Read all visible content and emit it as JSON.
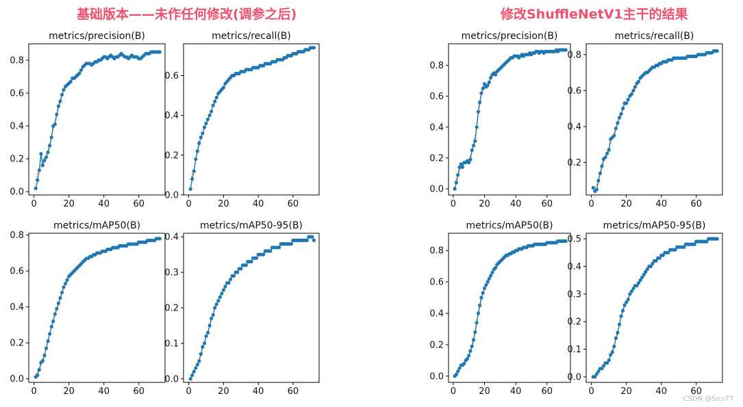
{
  "headings": {
    "left": "基础版本——未作任何修改(调参之后)",
    "right": "修改ShuffleNetV1主干的结果"
  },
  "watermark": "CSDN @Snu77",
  "colors": {
    "heading": "#f0506e",
    "points": "#1f77b4",
    "smooth": "#ff7f0e"
  },
  "chart_data": [
    {
      "type": "line",
      "group": "left",
      "title": "metrics/precision(B)",
      "xlabel": "",
      "ylabel": "",
      "xlim": [
        -3,
        75
      ],
      "ylim": [
        -0.02,
        0.9
      ],
      "xticks": [
        0,
        20,
        40,
        60
      ],
      "yticks": [
        0.0,
        0.2,
        0.4,
        0.6,
        0.8
      ],
      "series": [
        {
          "type": "scatter+line",
          "x_start": 1,
          "values": [
            0.02,
            0.07,
            0.13,
            0.23,
            0.16,
            0.19,
            0.21,
            0.24,
            0.28,
            0.33,
            0.4,
            0.41,
            0.47,
            0.52,
            0.55,
            0.59,
            0.62,
            0.64,
            0.65,
            0.66,
            0.67,
            0.69,
            0.69,
            0.7,
            0.71,
            0.72,
            0.74,
            0.76,
            0.77,
            0.78,
            0.78,
            0.78,
            0.77,
            0.78,
            0.79,
            0.79,
            0.8,
            0.8,
            0.81,
            0.82,
            0.82,
            0.81,
            0.82,
            0.83,
            0.82,
            0.81,
            0.82,
            0.82,
            0.83,
            0.84,
            0.83,
            0.82,
            0.82,
            0.81,
            0.82,
            0.83,
            0.82,
            0.82,
            0.82,
            0.81,
            0.81,
            0.82,
            0.83,
            0.84,
            0.84,
            0.84,
            0.85,
            0.85,
            0.85,
            0.85,
            0.85,
            0.85
          ]
        }
      ]
    },
    {
      "type": "line",
      "group": "left",
      "title": "metrics/recall(B)",
      "xlabel": "",
      "ylabel": "",
      "xlim": [
        -3,
        75
      ],
      "ylim": [
        0.0,
        0.76
      ],
      "xticks": [
        0,
        20,
        40,
        60
      ],
      "yticks": [
        0.0,
        0.2,
        0.4,
        0.6
      ],
      "series": [
        {
          "type": "scatter+line",
          "x_start": 1,
          "values": [
            0.03,
            0.08,
            0.12,
            0.18,
            0.22,
            0.26,
            0.29,
            0.31,
            0.34,
            0.36,
            0.38,
            0.4,
            0.42,
            0.45,
            0.47,
            0.49,
            0.51,
            0.52,
            0.53,
            0.54,
            0.56,
            0.57,
            0.58,
            0.59,
            0.6,
            0.6,
            0.61,
            0.61,
            0.61,
            0.62,
            0.62,
            0.62,
            0.63,
            0.63,
            0.63,
            0.63,
            0.64,
            0.64,
            0.64,
            0.64,
            0.65,
            0.65,
            0.65,
            0.66,
            0.66,
            0.66,
            0.66,
            0.67,
            0.67,
            0.67,
            0.68,
            0.68,
            0.68,
            0.68,
            0.69,
            0.69,
            0.7,
            0.7,
            0.7,
            0.71,
            0.71,
            0.71,
            0.72,
            0.72,
            0.72,
            0.72,
            0.73,
            0.73,
            0.73,
            0.74,
            0.74,
            0.74
          ]
        }
      ]
    },
    {
      "type": "line",
      "group": "left",
      "title": "metrics/mAP50(B)",
      "xlabel": "",
      "ylabel": "",
      "xlim": [
        -3,
        75
      ],
      "ylim": [
        -0.02,
        0.81
      ],
      "xticks": [
        0,
        20,
        40,
        60
      ],
      "yticks": [
        0.0,
        0.2,
        0.4,
        0.6,
        0.8
      ],
      "series": [
        {
          "type": "scatter+line",
          "x_start": 1,
          "values": [
            0.01,
            0.02,
            0.05,
            0.09,
            0.1,
            0.13,
            0.17,
            0.21,
            0.25,
            0.29,
            0.32,
            0.36,
            0.39,
            0.42,
            0.45,
            0.48,
            0.51,
            0.53,
            0.55,
            0.57,
            0.58,
            0.59,
            0.6,
            0.61,
            0.62,
            0.63,
            0.64,
            0.65,
            0.66,
            0.67,
            0.67,
            0.68,
            0.68,
            0.69,
            0.69,
            0.7,
            0.7,
            0.7,
            0.71,
            0.71,
            0.71,
            0.72,
            0.72,
            0.72,
            0.73,
            0.73,
            0.73,
            0.73,
            0.74,
            0.74,
            0.74,
            0.74,
            0.74,
            0.75,
            0.75,
            0.75,
            0.75,
            0.75,
            0.75,
            0.76,
            0.76,
            0.76,
            0.76,
            0.76,
            0.77,
            0.77,
            0.77,
            0.77,
            0.77,
            0.78,
            0.78,
            0.78
          ]
        }
      ]
    },
    {
      "type": "line",
      "group": "left",
      "title": "metrics/mAP50-95(B)",
      "xlabel": "",
      "ylabel": "",
      "xlim": [
        -3,
        75
      ],
      "ylim": [
        -0.01,
        0.41
      ],
      "xticks": [
        0,
        20,
        40,
        60
      ],
      "yticks": [
        0.0,
        0.1,
        0.2,
        0.3,
        0.4
      ],
      "series": [
        {
          "type": "scatter+line",
          "x_start": 1,
          "values": [
            0.0,
            0.01,
            0.02,
            0.03,
            0.04,
            0.05,
            0.07,
            0.09,
            0.1,
            0.12,
            0.13,
            0.15,
            0.17,
            0.18,
            0.2,
            0.21,
            0.22,
            0.23,
            0.24,
            0.25,
            0.26,
            0.27,
            0.27,
            0.28,
            0.29,
            0.29,
            0.3,
            0.3,
            0.31,
            0.31,
            0.32,
            0.32,
            0.32,
            0.33,
            0.33,
            0.33,
            0.34,
            0.34,
            0.34,
            0.35,
            0.35,
            0.35,
            0.35,
            0.36,
            0.36,
            0.36,
            0.36,
            0.37,
            0.37,
            0.37,
            0.37,
            0.37,
            0.38,
            0.38,
            0.38,
            0.38,
            0.38,
            0.38,
            0.38,
            0.39,
            0.39,
            0.39,
            0.39,
            0.39,
            0.39,
            0.39,
            0.39,
            0.39,
            0.4,
            0.4,
            0.4,
            0.39
          ]
        }
      ]
    },
    {
      "type": "line",
      "group": "right",
      "title": "metrics/precision(B)",
      "xlabel": "",
      "ylabel": "",
      "xlim": [
        -3,
        75
      ],
      "ylim": [
        -0.04,
        0.94
      ],
      "xticks": [
        0,
        20,
        40,
        60
      ],
      "yticks": [
        0.0,
        0.2,
        0.4,
        0.6,
        0.8
      ],
      "series": [
        {
          "type": "scatter+line",
          "x_start": 1,
          "values": [
            0.0,
            0.04,
            0.09,
            0.14,
            0.16,
            0.14,
            0.17,
            0.17,
            0.18,
            0.17,
            0.19,
            0.25,
            0.28,
            0.31,
            0.4,
            0.5,
            0.56,
            0.62,
            0.65,
            0.68,
            0.66,
            0.67,
            0.69,
            0.72,
            0.74,
            0.75,
            0.74,
            0.76,
            0.77,
            0.78,
            0.79,
            0.8,
            0.81,
            0.82,
            0.83,
            0.84,
            0.85,
            0.85,
            0.86,
            0.86,
            0.86,
            0.85,
            0.86,
            0.87,
            0.86,
            0.87,
            0.87,
            0.87,
            0.88,
            0.87,
            0.88,
            0.88,
            0.89,
            0.89,
            0.88,
            0.89,
            0.89,
            0.88,
            0.89,
            0.89,
            0.89,
            0.89,
            0.89,
            0.89,
            0.89,
            0.9,
            0.89,
            0.9,
            0.9,
            0.9,
            0.9,
            0.9
          ]
        }
      ]
    },
    {
      "type": "line",
      "group": "right",
      "title": "metrics/recall(B)",
      "xlabel": "",
      "ylabel": "",
      "xlim": [
        -3,
        75
      ],
      "ylim": [
        0.02,
        0.86
      ],
      "xticks": [
        0,
        20,
        40,
        60
      ],
      "yticks": [
        0.2,
        0.4,
        0.6,
        0.8
      ],
      "series": [
        {
          "type": "scatter+line",
          "x_start": 1,
          "values": [
            0.06,
            0.04,
            0.05,
            0.1,
            0.14,
            0.18,
            0.22,
            0.23,
            0.25,
            0.27,
            0.33,
            0.34,
            0.35,
            0.39,
            0.42,
            0.45,
            0.47,
            0.5,
            0.53,
            0.53,
            0.55,
            0.57,
            0.58,
            0.6,
            0.62,
            0.64,
            0.65,
            0.67,
            0.68,
            0.69,
            0.7,
            0.7,
            0.71,
            0.72,
            0.73,
            0.73,
            0.74,
            0.74,
            0.75,
            0.75,
            0.76,
            0.76,
            0.76,
            0.77,
            0.77,
            0.77,
            0.78,
            0.78,
            0.78,
            0.78,
            0.78,
            0.78,
            0.78,
            0.78,
            0.79,
            0.79,
            0.79,
            0.79,
            0.79,
            0.79,
            0.8,
            0.8,
            0.8,
            0.8,
            0.8,
            0.81,
            0.81,
            0.81,
            0.81,
            0.82,
            0.82,
            0.82
          ]
        }
      ]
    },
    {
      "type": "line",
      "group": "right",
      "title": "metrics/mAP50(B)",
      "xlabel": "",
      "ylabel": "",
      "xlim": [
        -3,
        75
      ],
      "ylim": [
        -0.04,
        0.91
      ],
      "xticks": [
        0,
        20,
        40,
        60
      ],
      "yticks": [
        0.0,
        0.2,
        0.4,
        0.6,
        0.8
      ],
      "series": [
        {
          "type": "scatter+line",
          "x_start": 1,
          "values": [
            0.0,
            0.01,
            0.03,
            0.05,
            0.07,
            0.07,
            0.08,
            0.1,
            0.11,
            0.13,
            0.16,
            0.19,
            0.23,
            0.28,
            0.34,
            0.4,
            0.45,
            0.5,
            0.53,
            0.56,
            0.58,
            0.6,
            0.62,
            0.64,
            0.66,
            0.68,
            0.69,
            0.71,
            0.72,
            0.73,
            0.74,
            0.75,
            0.76,
            0.77,
            0.77,
            0.78,
            0.78,
            0.79,
            0.79,
            0.8,
            0.8,
            0.81,
            0.81,
            0.81,
            0.82,
            0.82,
            0.82,
            0.83,
            0.83,
            0.83,
            0.83,
            0.84,
            0.84,
            0.84,
            0.84,
            0.84,
            0.84,
            0.84,
            0.84,
            0.85,
            0.85,
            0.85,
            0.85,
            0.85,
            0.85,
            0.85,
            0.86,
            0.86,
            0.86,
            0.86,
            0.86,
            0.86
          ]
        }
      ]
    },
    {
      "type": "line",
      "group": "right",
      "title": "metrics/mAP50-95(B)",
      "xlabel": "",
      "ylabel": "",
      "xlim": [
        -3,
        75
      ],
      "ylim": [
        -0.02,
        0.52
      ],
      "xticks": [
        0,
        20,
        40,
        60
      ],
      "yticks": [
        0.0,
        0.1,
        0.2,
        0.3,
        0.4,
        0.5
      ],
      "series": [
        {
          "type": "scatter+line",
          "x_start": 1,
          "values": [
            0.0,
            0.0,
            0.01,
            0.02,
            0.03,
            0.03,
            0.04,
            0.05,
            0.05,
            0.06,
            0.08,
            0.09,
            0.11,
            0.14,
            0.16,
            0.19,
            0.22,
            0.24,
            0.26,
            0.27,
            0.28,
            0.3,
            0.31,
            0.32,
            0.33,
            0.33,
            0.34,
            0.35,
            0.36,
            0.37,
            0.38,
            0.39,
            0.4,
            0.4,
            0.41,
            0.42,
            0.42,
            0.43,
            0.43,
            0.44,
            0.44,
            0.45,
            0.45,
            0.45,
            0.46,
            0.46,
            0.46,
            0.46,
            0.47,
            0.47,
            0.47,
            0.47,
            0.47,
            0.48,
            0.48,
            0.48,
            0.48,
            0.48,
            0.48,
            0.49,
            0.49,
            0.49,
            0.49,
            0.49,
            0.49,
            0.49,
            0.5,
            0.5,
            0.5,
            0.5,
            0.5,
            0.5
          ]
        }
      ]
    }
  ]
}
